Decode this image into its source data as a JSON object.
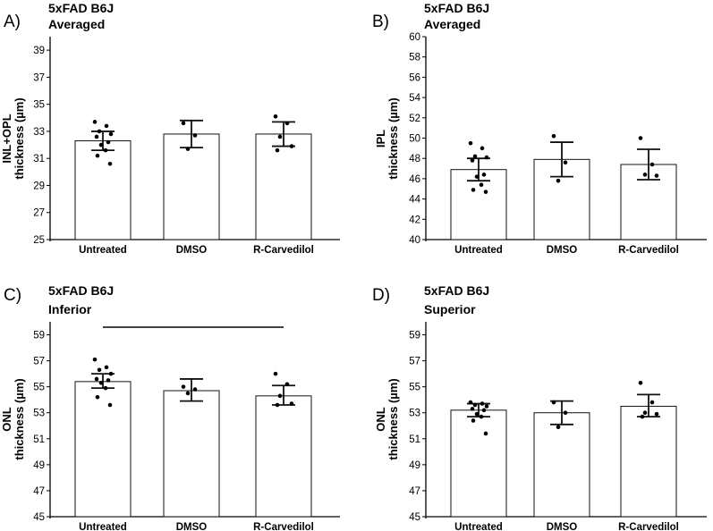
{
  "chart_data": [
    {
      "type": "bar",
      "panel_label": "A)",
      "title": "5xFAD B6J",
      "subtitle": "Averaged",
      "ylabel_top": "INL+OPL",
      "ylabel": "thickness (µm)",
      "ylim": [
        25,
        40
      ],
      "yticks": [
        25,
        27,
        29,
        31,
        33,
        35,
        37,
        39
      ],
      "categories": [
        "Untreated",
        "DMSO",
        "R-Carvedilol"
      ],
      "values": [
        32.3,
        32.8,
        32.8
      ],
      "error_low": [
        31.6,
        31.8,
        31.9
      ],
      "error_high": [
        33.0,
        33.8,
        33.7
      ],
      "points": [
        [
          33.7,
          33.4,
          33.0,
          32.8,
          32.6,
          32.2,
          32.0,
          31.6,
          31.2,
          30.6
        ],
        [
          33.6,
          32.7,
          31.7
        ],
        [
          34.1,
          33.6,
          32.6,
          31.9,
          31.6
        ]
      ],
      "significance_bar": false
    },
    {
      "type": "bar",
      "panel_label": "B)",
      "title": "5xFAD B6J",
      "subtitle": "Averaged",
      "ylabel_top": "IPL",
      "ylabel": "thickness (µm)",
      "ylim": [
        40,
        60
      ],
      "yticks": [
        40,
        42,
        44,
        46,
        48,
        50,
        52,
        54,
        56,
        58,
        60
      ],
      "categories": [
        "Untreated",
        "DMSO",
        "R-Carvedilol"
      ],
      "values": [
        46.9,
        47.9,
        47.4
      ],
      "error_low": [
        45.8,
        46.2,
        45.9
      ],
      "error_high": [
        48.0,
        49.6,
        48.9
      ],
      "points": [
        [
          49.5,
          49.0,
          48.2,
          48.1,
          47.8,
          46.4,
          46.2,
          45.4,
          44.9,
          44.7
        ],
        [
          50.2,
          47.6,
          45.8
        ],
        [
          50.0,
          47.4,
          46.4,
          46.3
        ]
      ],
      "significance_bar": false
    },
    {
      "type": "bar",
      "panel_label": "C)",
      "title": "5xFAD B6J",
      "subtitle": "Inferior",
      "ylabel_top": "ONL",
      "ylabel": "thickness (µm)",
      "ylim": [
        45,
        60
      ],
      "yticks": [
        45,
        47,
        49,
        51,
        53,
        55,
        57,
        59
      ],
      "categories": [
        "Untreated",
        "DMSO",
        "R-Carvedilol"
      ],
      "values": [
        55.4,
        54.7,
        54.3
      ],
      "error_low": [
        54.9,
        53.9,
        53.6
      ],
      "error_high": [
        56.0,
        55.6,
        55.1
      ],
      "points": [
        [
          57.1,
          56.5,
          56.3,
          56.0,
          55.6,
          55.5,
          55.3,
          54.9,
          54.2,
          53.6
        ],
        [
          55.0,
          54.8,
          54.5
        ],
        [
          56.0,
          55.2,
          54.3,
          53.7,
          53.6
        ]
      ],
      "significance_bar": true
    },
    {
      "type": "bar",
      "panel_label": "D)",
      "title": "5xFAD B6J",
      "subtitle": "Superior",
      "ylabel_top": "ONL",
      "ylabel": "thickness (µm)",
      "ylim": [
        45,
        60
      ],
      "yticks": [
        45,
        47,
        49,
        51,
        53,
        55,
        57,
        59
      ],
      "categories": [
        "Untreated",
        "DMSO",
        "R-Carvedilol"
      ],
      "values": [
        53.2,
        53.0,
        53.5
      ],
      "error_low": [
        52.7,
        52.1,
        52.7
      ],
      "error_high": [
        53.7,
        53.9,
        54.4
      ],
      "points": [
        [
          53.8,
          53.7,
          53.6,
          53.5,
          53.3,
          53.2,
          52.9,
          52.7,
          52.4,
          51.4
        ],
        [
          53.8,
          53.0,
          51.9
        ],
        [
          55.3,
          53.8,
          53.0,
          52.9,
          52.7
        ]
      ],
      "significance_bar": false
    }
  ]
}
